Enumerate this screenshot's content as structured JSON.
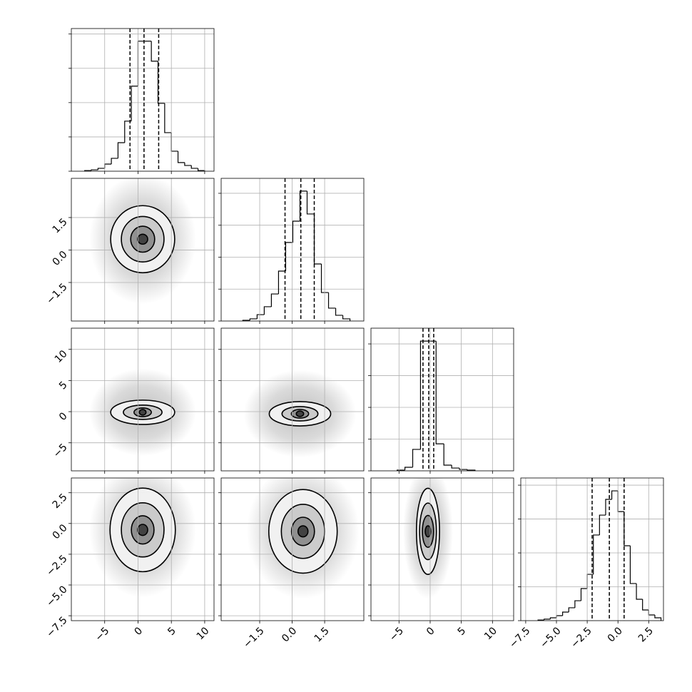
{
  "chart_data": {
    "type": "corner",
    "line_color": "#000000",
    "grid": true,
    "grid_color": "#b0b0b0",
    "cloud_color": "#b5b5b5",
    "contour_colors": [
      "#f4f4f4",
      "#c6c6c6",
      "#8a8a8a",
      "#3a3a3a"
    ],
    "params": [
      {
        "lim": [
          -10,
          11.4
        ],
        "ticks": [
          {
            "value": -5,
            "label": "−5"
          },
          0,
          5,
          10
        ]
      },
      {
        "lim": [
          -3.28,
          3.31
        ],
        "ticks": [
          {
            "value": -1.5,
            "label": "−1.5"
          },
          {
            "value": 0,
            "label": "0.0"
          },
          1.5
        ]
      },
      {
        "lim": [
          -9.5,
          13.4
        ],
        "ticks": [
          {
            "value": -5,
            "label": "−5"
          },
          0,
          5,
          10
        ]
      },
      {
        "lim": [
          -7.9,
          3.7
        ],
        "ticks": [
          {
            "value": -7.5,
            "label": "−7.5"
          },
          {
            "value": -5,
            "label": "−5.0"
          },
          {
            "value": -2.5,
            "label": "−2.5"
          },
          {
            "value": 0,
            "label": "0.0"
          },
          2.5
        ]
      }
    ],
    "histograms": [
      {
        "bins": [
          -8,
          -7,
          -6,
          -5,
          -4,
          -3,
          -2,
          -1,
          0,
          1,
          2,
          3,
          4,
          5,
          6,
          7,
          8,
          9,
          10
        ],
        "counts": [
          5,
          10,
          21,
          52,
          94,
          208,
          365,
          620,
          948,
          948,
          802,
          495,
          281,
          146,
          63,
          42,
          21,
          5
        ],
        "ylim": [
          0,
          1040
        ],
        "yticks": [
          0,
          250,
          500,
          750,
          1000
        ],
        "quantiles": [
          -1.2,
          0.9,
          3.1
        ]
      },
      {
        "bins": [
          -2.28,
          -1.95,
          -1.62,
          -1.29,
          -0.96,
          -0.63,
          -0.3,
          0.03,
          0.36,
          0.69,
          1.02,
          1.35,
          1.68,
          2.01,
          2.34,
          2.67
        ],
        "counts": [
          6,
          17,
          50,
          112,
          212,
          391,
          615,
          782,
          1017,
          838,
          447,
          223,
          101,
          45,
          17
        ],
        "ylim": [
          0,
          1117
        ],
        "yticks": [
          0,
          250,
          500,
          750,
          1000
        ],
        "quantiles": [
          -0.33,
          0.4,
          1.02
        ]
      },
      {
        "bins": [
          -5.3,
          -4.05,
          -2.8,
          -1.55,
          -0.3,
          0.95,
          2.2,
          3.45,
          4.7,
          5.95,
          7.2
        ],
        "counts": [
          6,
          28,
          169,
          1022,
          1022,
          213,
          45,
          22,
          11,
          6
        ],
        "ylim": [
          0,
          1124
        ],
        "yticks": [
          0,
          250,
          500,
          750,
          1000
        ],
        "quantiles": [
          -1.15,
          -0.23,
          0.57
        ]
      },
      {
        "bins": [
          -6.5,
          -6,
          -5.5,
          -5,
          -4.5,
          -4,
          -3.5,
          -3,
          -2.5,
          -2,
          -1.5,
          -1,
          -0.5,
          0,
          0.5,
          1,
          1.5,
          2,
          2.5,
          3,
          3.5
        ],
        "counts": [
          5,
          11,
          21,
          37,
          63,
          95,
          147,
          237,
          342,
          632,
          779,
          895,
          958,
          805,
          553,
          274,
          158,
          79,
          42,
          21
        ],
        "ylim": [
          0,
          1053
        ],
        "yticks": [
          0,
          250,
          500,
          750,
          1000
        ],
        "quantiles": [
          -2.1,
          -0.7,
          0.5
        ]
      }
    ],
    "pairs": [
      [
        {
          "center": [
            0.7,
            0.5
          ],
          "cloud": [
            8,
            3
          ],
          "contours": [
            {
              "rx": 4.8,
              "ry": 1.55
            },
            {
              "rx": 3.2,
              "ry": 1.05
            },
            {
              "rx": 1.8,
              "ry": 0.6
            },
            {
              "rx": 0.75,
              "ry": 0.23
            }
          ]
        }
      ],
      [
        {
          "center": [
            0.7,
            -0.1
          ],
          "cloud": [
            8,
            7
          ],
          "contours": [
            {
              "rx": 4.8,
              "ry": 1.95
            },
            {
              "rx": 2.9,
              "ry": 1.15
            },
            {
              "rx": 1.3,
              "ry": 0.7
            },
            {
              "rx": 0.5,
              "ry": 0.45
            }
          ]
        },
        {
          "center": [
            0.36,
            -0.34
          ],
          "cloud": [
            2.6,
            7
          ],
          "contours": [
            {
              "rx": 1.42,
              "ry": 1.95
            },
            {
              "rx": 0.83,
              "ry": 1.15
            },
            {
              "rx": 0.4,
              "ry": 0.7
            },
            {
              "rx": 0.17,
              "ry": 0.45
            }
          ]
        }
      ],
      [
        {
          "center": [
            0.7,
            -0.52
          ],
          "cloud": [
            8,
            5.5
          ],
          "contours": [
            {
              "rx": 4.9,
              "ry": 3.4
            },
            {
              "rx": 3.2,
              "ry": 2.2
            },
            {
              "rx": 1.7,
              "ry": 1.15
            },
            {
              "rx": 0.75,
              "ry": 0.45
            }
          ]
        },
        {
          "center": [
            0.5,
            -0.64
          ],
          "cloud": [
            2.6,
            5.5
          ],
          "contours": [
            {
              "rx": 1.58,
              "ry": 3.4
            },
            {
              "rx": 1.0,
              "ry": 2.2
            },
            {
              "rx": 0.53,
              "ry": 1.15
            },
            {
              "rx": 0.23,
              "ry": 0.45
            }
          ]
        },
        {
          "center": [
            -0.35,
            -0.64
          ],
          "cloud": [
            4,
            5.5
          ],
          "contours": [
            {
              "rx": 1.85,
              "ry": 3.5
            },
            {
              "rx": 1.35,
              "ry": 2.3
            },
            {
              "rx": 0.9,
              "ry": 1.3
            },
            {
              "rx": 0.45,
              "ry": 0.45
            }
          ]
        }
      ]
    ]
  }
}
